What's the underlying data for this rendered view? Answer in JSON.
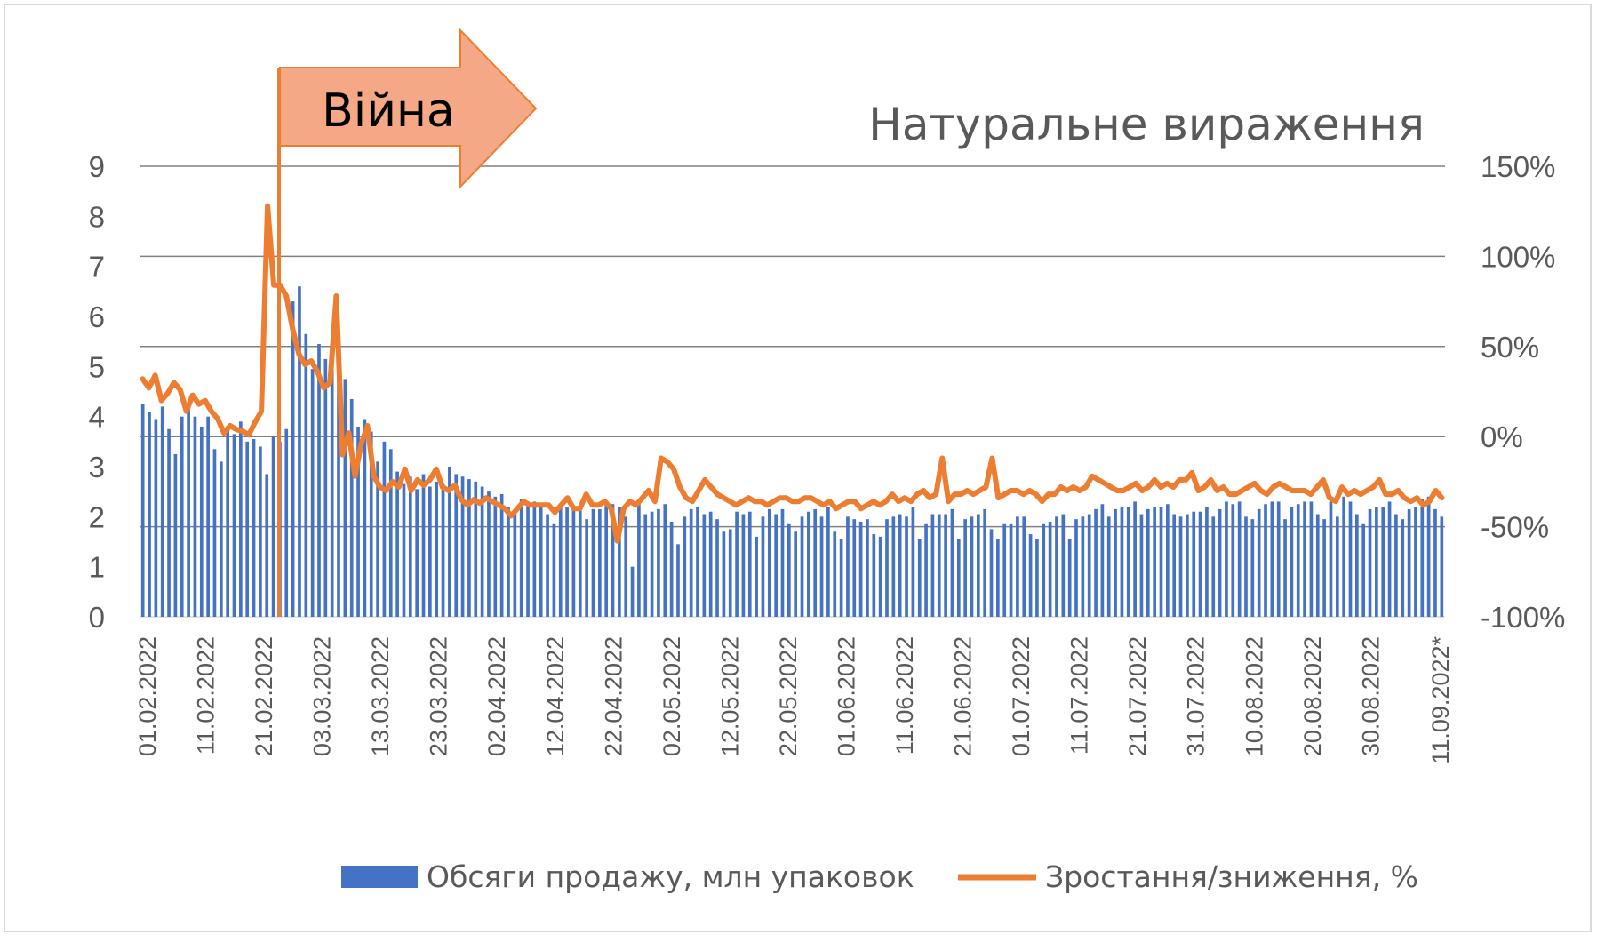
{
  "chart_data": {
    "type": "bar+line",
    "title": "Натуральне вираження",
    "annotation": "Війна",
    "left_axis": {
      "ticks": [
        "0",
        "1",
        "2",
        "3",
        "4",
        "5",
        "6",
        "7",
        "8",
        "9"
      ],
      "ylim": [
        0,
        9
      ]
    },
    "right_axis": {
      "ticks": [
        "-100%",
        "-50%",
        "0%",
        "50%",
        "100%",
        "150%"
      ],
      "ylim": [
        -100,
        150
      ]
    },
    "x_tick_labels": [
      "01.02.2022",
      "11.02.2022",
      "21.02.2022",
      "03.03.2022",
      "13.03.2022",
      "23.03.2022",
      "02.04.2022",
      "12.04.2022",
      "22.04.2022",
      "02.05.2022",
      "12.05.2022",
      "22.05.2022",
      "01.06.2022",
      "11.06.2022",
      "21.06.2022",
      "01.07.2022",
      "11.07.2022",
      "21.07.2022",
      "31.07.2022",
      "10.08.2022",
      "20.08.2022",
      "30.08.2022",
      "11.09.2022*"
    ],
    "legend": [
      {
        "name": "Обсяги продажу, млн упаковок",
        "color": "#4472c4"
      },
      {
        "name": "Зростання/зниження, %",
        "color": "#ed7d31"
      }
    ],
    "gridlines": true,
    "legend_position": "bottom",
    "series": [
      {
        "name": "Обсяги продажу, млн упаковок",
        "kind": "bar",
        "color": "#4472c4",
        "values": [
          4.25,
          4.1,
          3.95,
          4.2,
          3.75,
          3.25,
          4.0,
          4.15,
          4.0,
          3.8,
          4.0,
          3.35,
          3.1,
          3.8,
          3.65,
          3.9,
          3.5,
          3.55,
          3.4,
          2.85,
          3.6,
          3.5,
          3.75,
          6.3,
          6.6,
          5.65,
          4.95,
          5.45,
          5.15,
          4.95,
          4.85,
          4.75,
          4.35,
          3.8,
          3.95,
          3.7,
          3.1,
          3.5,
          3.35,
          2.9,
          2.65,
          2.8,
          2.55,
          2.85,
          2.6,
          2.7,
          2.65,
          3.0,
          2.85,
          2.8,
          2.75,
          2.7,
          2.6,
          2.5,
          2.4,
          2.45,
          2.2,
          2.1,
          2.35,
          2.3,
          2.3,
          2.25,
          2.05,
          1.85,
          2.2,
          2.2,
          2.15,
          2.2,
          1.95,
          2.15,
          2.15,
          2.3,
          2.25,
          2.2,
          2.0,
          1.0,
          2.25,
          2.05,
          2.1,
          2.15,
          2.25,
          1.9,
          1.45,
          2.0,
          2.15,
          2.2,
          2.05,
          2.1,
          1.95,
          1.7,
          1.75,
          2.1,
          2.05,
          2.1,
          1.6,
          2.0,
          2.15,
          2.05,
          2.15,
          1.85,
          1.7,
          2.0,
          2.1,
          2.15,
          2.0,
          2.2,
          1.7,
          1.55,
          2.0,
          1.95,
          1.9,
          1.95,
          1.65,
          1.6,
          1.95,
          2.0,
          2.05,
          2.0,
          2.2,
          1.55,
          1.85,
          2.05,
          2.05,
          2.05,
          2.15,
          1.55,
          1.95,
          2.0,
          2.05,
          2.15,
          1.75,
          1.55,
          1.85,
          1.85,
          2.0,
          2.0,
          1.65,
          1.55,
          1.85,
          1.9,
          2.0,
          2.05,
          1.55,
          1.95,
          2.0,
          2.05,
          2.15,
          2.25,
          2.0,
          2.15,
          2.2,
          2.2,
          2.3,
          2.05,
          2.15,
          2.2,
          2.2,
          2.25,
          2.05,
          2.0,
          2.05,
          2.1,
          2.1,
          2.2,
          2.0,
          2.15,
          2.3,
          2.25,
          2.3,
          2.0,
          1.95,
          2.15,
          2.25,
          2.3,
          2.3,
          1.95,
          2.2,
          2.25,
          2.3,
          2.3,
          2.05,
          1.95,
          2.3,
          2.0,
          2.4,
          2.3,
          2.05,
          1.85,
          2.15,
          2.2,
          2.2,
          2.3,
          2.05,
          1.95,
          2.15,
          2.2,
          2.35,
          2.4,
          2.15,
          2.0
        ]
      },
      {
        "name": "Зростання/зниження, %",
        "kind": "line",
        "color": "#ed7d31",
        "values": [
          32,
          27,
          34,
          20,
          24,
          30,
          26,
          14,
          23,
          18,
          20,
          14,
          10,
          2,
          6,
          4,
          3,
          1,
          8,
          14,
          128,
          84,
          84,
          78,
          60,
          46,
          40,
          42,
          36,
          27,
          30,
          78,
          -10,
          2,
          -22,
          -4,
          6,
          -22,
          -28,
          -30,
          -25,
          -28,
          -18,
          -30,
          -24,
          -27,
          -24,
          -18,
          -28,
          -30,
          -27,
          -35,
          -38,
          -35,
          -37,
          -34,
          -36,
          -38,
          -40,
          -44,
          -40,
          -36,
          -38,
          -38,
          -38,
          -38,
          -42,
          -38,
          -34,
          -40,
          -40,
          -32,
          -38,
          -38,
          -36,
          -40,
          -58,
          -40,
          -36,
          -38,
          -34,
          -30,
          -36,
          -12,
          -14,
          -18,
          -28,
          -34,
          -36,
          -30,
          -24,
          -28,
          -32,
          -34,
          -36,
          -38,
          -36,
          -34,
          -36,
          -36,
          -38,
          -36,
          -34,
          -34,
          -36,
          -36,
          -34,
          -34,
          -36,
          -38,
          -36,
          -40,
          -38,
          -36,
          -36,
          -40,
          -38,
          -36,
          -38,
          -36,
          -32,
          -36,
          -34,
          -36,
          -32,
          -30,
          -34,
          -32,
          -12,
          -36,
          -32,
          -32,
          -30,
          -32,
          -30,
          -28,
          -12,
          -34,
          -32,
          -30,
          -30,
          -32,
          -30,
          -32,
          -36,
          -32,
          -32,
          -28,
          -30,
          -28,
          -30,
          -28,
          -22,
          -24,
          -26,
          -28,
          -30,
          -30,
          -28,
          -26,
          -30,
          -28,
          -24,
          -28,
          -26,
          -28,
          -24,
          -24,
          -20,
          -30,
          -28,
          -24,
          -30,
          -28,
          -32,
          -32,
          -30,
          -28,
          -26,
          -30,
          -32,
          -28,
          -26,
          -28,
          -30,
          -30,
          -30,
          -32,
          -28,
          -24,
          -34,
          -36,
          -28,
          -32,
          -30,
          -32,
          -30,
          -28,
          -24,
          -32,
          -32,
          -30,
          -34,
          -36,
          -34,
          -38,
          -36,
          -30,
          -34
        ]
      }
    ]
  }
}
